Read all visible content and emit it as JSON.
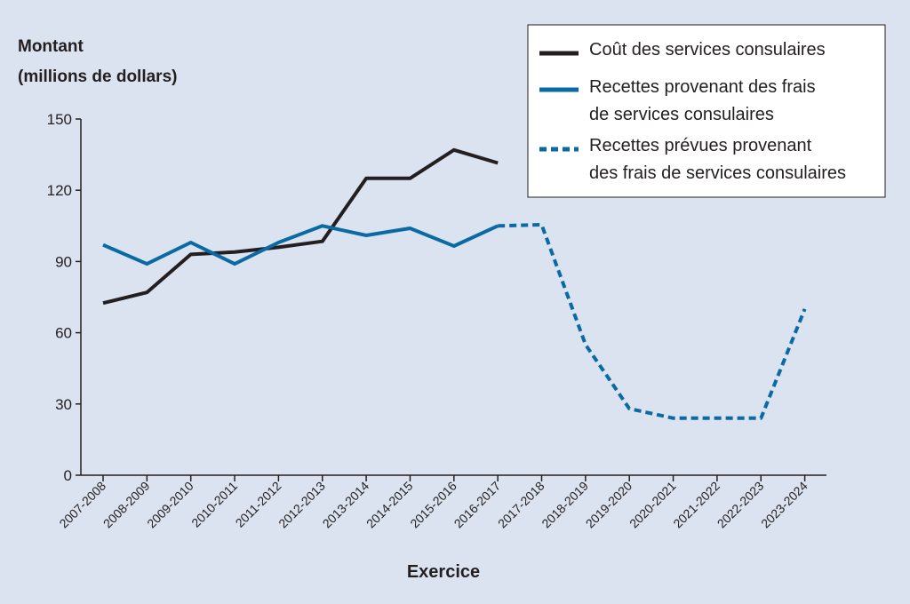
{
  "chart_data": {
    "type": "line",
    "ylabel": [
      "Montant",
      "(millions de dollars)"
    ],
    "xlabel": "Exercice",
    "ylim": [
      0,
      150
    ],
    "yticks": [
      0,
      30,
      60,
      90,
      120,
      150
    ],
    "grid": false,
    "legend_position": "top-right",
    "categories": [
      "2007-2008",
      "2008-2009",
      "2009-2010",
      "2010-2011",
      "2011-2012",
      "2012-2013",
      "2013-2014",
      "2014-2015",
      "2015-2016",
      "2016-2017",
      "2017-2018",
      "2018-2019",
      "2019-2020",
      "2020-2021",
      "2021-2022",
      "2022-2023",
      "2023-2024"
    ],
    "series": [
      {
        "name": "Coût des services consulaires",
        "color": "#231f20",
        "style": "solid",
        "values": [
          72.5,
          77,
          93,
          94,
          96,
          98.5,
          125,
          125,
          137,
          131.5,
          null,
          null,
          null,
          null,
          null,
          null,
          null
        ]
      },
      {
        "name": "Recettes provenant des frais de services consulaires",
        "color": "#0a6aa3",
        "style": "solid",
        "values": [
          97,
          89,
          98,
          89,
          98,
          105,
          101,
          104,
          96.5,
          105,
          null,
          null,
          null,
          null,
          null,
          null,
          null
        ]
      },
      {
        "name": "Recettes prévues provenant des frais de services consulaires",
        "color": "#0a6aa3",
        "style": "dashed",
        "values": [
          null,
          null,
          null,
          null,
          null,
          null,
          null,
          null,
          null,
          105,
          105.5,
          55,
          28,
          24,
          24,
          24,
          70
        ]
      }
    ],
    "legend": [
      {
        "lines": [
          "Coût des services consulaires"
        ]
      },
      {
        "lines": [
          "Recettes provenant des frais",
          "de services consulaires"
        ]
      },
      {
        "lines": [
          "Recettes prévues provenant",
          "des frais de services consulaires"
        ]
      }
    ]
  }
}
